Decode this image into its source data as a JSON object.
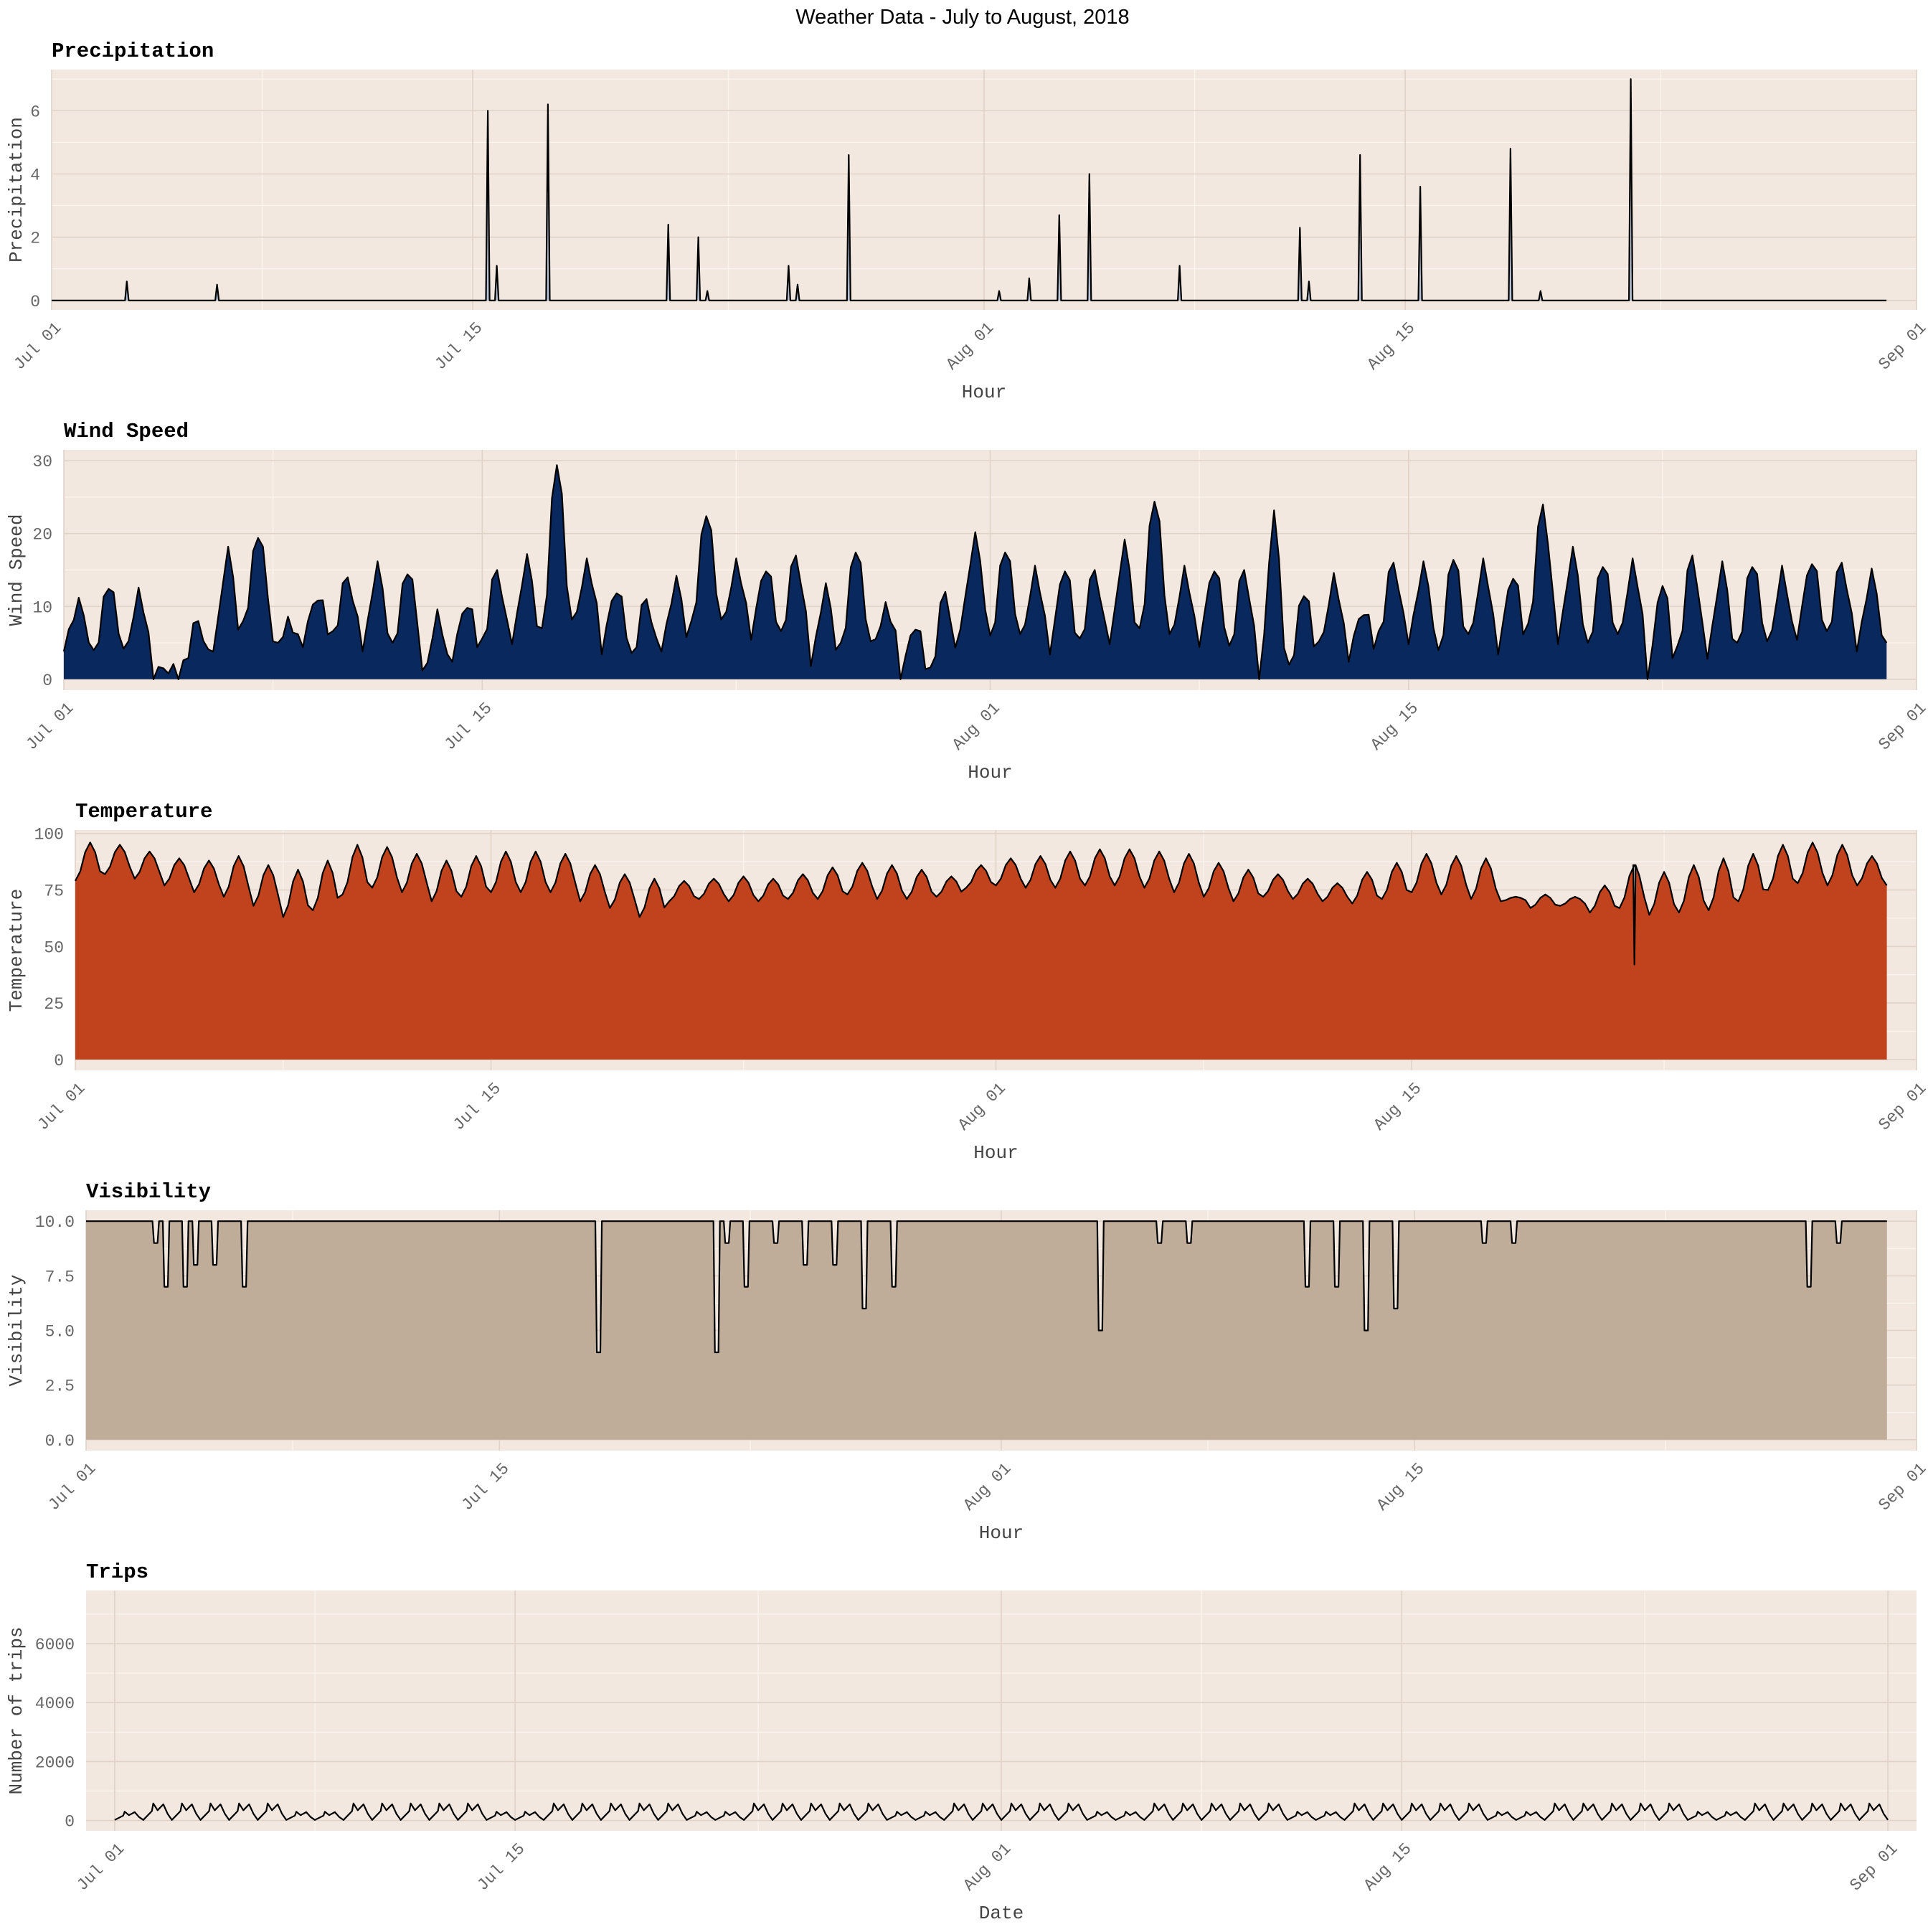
{
  "main_title": "Weather Data -  July to August, 2018",
  "colors": {
    "page_background": "#ffffff",
    "panel_background": "#f3e8df",
    "major_grid": "#e0d2c7",
    "minor_grid": "#fbf5f0",
    "outline": "#000000",
    "precipitation_fill": "#b6c2d8",
    "wind_fill": "#08285e",
    "temperature_fill": "#c0431d",
    "visibility_fill": "#bfad9a"
  },
  "chart_data": [
    {
      "id": "precipitation",
      "type": "area",
      "title": "Precipitation",
      "xlabel": "Hour",
      "ylabel": "Precipitation",
      "x_ticks": [
        "Jul 01",
        "Jul 15",
        "Aug 01",
        "Aug 15",
        "Sep 01"
      ],
      "x_range": [
        "2018-07-01",
        "2018-09-01"
      ],
      "x_data_range": [
        "2018-07-01",
        "2018-08-31"
      ],
      "ylim": [
        -0.3,
        7.3
      ],
      "y_ticks": [
        0,
        2,
        4,
        6
      ],
      "y_tick_labels": [
        "0",
        "2",
        "4",
        "6"
      ],
      "baseline": 0,
      "fill_color": "#b6c2d8",
      "grid": true,
      "spikes": [
        {
          "date": "2018-07-03",
          "value": 0.6
        },
        {
          "date": "2018-07-06",
          "value": 0.5
        },
        {
          "date": "2018-07-15",
          "value": 6.0
        },
        {
          "date": "2018-07-15",
          "value": 1.1
        },
        {
          "date": "2018-07-17",
          "value": 6.2
        },
        {
          "date": "2018-07-21",
          "value": 2.4
        },
        {
          "date": "2018-07-22",
          "value": 2.0
        },
        {
          "date": "2018-07-22",
          "value": 0.3
        },
        {
          "date": "2018-07-25",
          "value": 1.1
        },
        {
          "date": "2018-07-25",
          "value": 0.5
        },
        {
          "date": "2018-07-27",
          "value": 4.6
        },
        {
          "date": "2018-08-01",
          "value": 0.3
        },
        {
          "date": "2018-08-02",
          "value": 0.7
        },
        {
          "date": "2018-08-03",
          "value": 2.7
        },
        {
          "date": "2018-08-04",
          "value": 4.0
        },
        {
          "date": "2018-08-07",
          "value": 1.1
        },
        {
          "date": "2018-08-11",
          "value": 2.3
        },
        {
          "date": "2018-08-11",
          "value": 0.6
        },
        {
          "date": "2018-08-13",
          "value": 4.6
        },
        {
          "date": "2018-08-15",
          "value": 3.6
        },
        {
          "date": "2018-08-18",
          "value": 4.8
        },
        {
          "date": "2018-08-19",
          "value": 0.3
        },
        {
          "date": "2018-08-22",
          "value": 7.0
        }
      ]
    },
    {
      "id": "wind",
      "type": "area",
      "title": "Wind Speed",
      "xlabel": "Hour",
      "ylabel": "Wind Speed",
      "x_ticks": [
        "Jul 01",
        "Jul 15",
        "Aug 01",
        "Aug 15",
        "Sep 01"
      ],
      "x_range": [
        "2018-07-01",
        "2018-09-01"
      ],
      "x_data_range": [
        "2018-07-01",
        "2018-08-31"
      ],
      "ylim": [
        -1.5,
        31.5
      ],
      "y_ticks": [
        0,
        10,
        20,
        30
      ],
      "y_tick_labels": [
        "0",
        "10",
        "20",
        "30"
      ],
      "baseline": 0,
      "fill_color": "#08285e",
      "grid": true,
      "daily_peak": [
        10,
        13,
        12,
        2,
        8,
        17,
        20,
        8,
        12,
        14,
        15,
        15,
        9,
        11,
        15,
        16,
        30,
        16,
        13,
        11,
        13,
        23,
        16,
        16,
        17,
        12,
        18,
        10,
        8,
        12,
        19,
        18,
        15,
        16,
        15,
        18,
        25,
        15,
        16,
        15,
        22,
        12,
        14,
        10,
        16,
        15,
        17,
        16,
        15,
        24,
        17,
        16,
        16,
        14,
        17,
        15,
        16,
        15,
        17,
        16,
        14
      ],
      "daily_trough": [
        5,
        4,
        3,
        0,
        2,
        5,
        8,
        4,
        5,
        6,
        5,
        5,
        0,
        3,
        5,
        6,
        7,
        7,
        4,
        3,
        5,
        8,
        7,
        6,
        6,
        3,
        5,
        4,
        0,
        1,
        8,
        6,
        5,
        4,
        5,
        6,
        7,
        5,
        5,
        4,
        0,
        2,
        4,
        3,
        6,
        6,
        4,
        5,
        4,
        7,
        6,
        5,
        5,
        0,
        4,
        4,
        5,
        4,
        6,
        6,
        5
      ]
    },
    {
      "id": "temperature",
      "type": "area",
      "title": "Temperature",
      "xlabel": "Hour",
      "ylabel": "Temperature",
      "x_ticks": [
        "Jul 01",
        "Jul 15",
        "Aug 01",
        "Aug 15",
        "Sep 01"
      ],
      "x_range": [
        "2018-07-01",
        "2018-09-01"
      ],
      "x_data_range": [
        "2018-07-01",
        "2018-08-31"
      ],
      "ylim": [
        -4.8,
        101.5
      ],
      "y_ticks": [
        0,
        25,
        50,
        75,
        100
      ],
      "y_tick_labels": [
        "0",
        "25",
        "50",
        "75",
        "100"
      ],
      "baseline": 0,
      "fill_color": "#c0431d",
      "grid": true,
      "daily_high": [
        96,
        95,
        92,
        89,
        88,
        90,
        86,
        84,
        88,
        95,
        94,
        91,
        88,
        90,
        92,
        92,
        91,
        86,
        82,
        80,
        79,
        80,
        81,
        80,
        82,
        85,
        87,
        86,
        84,
        81,
        86,
        89,
        90,
        92,
        93,
        93,
        92,
        91,
        87,
        84,
        82,
        80,
        78,
        83,
        87,
        91,
        90,
        89,
        72,
        73,
        72,
        77,
        86,
        83,
        86,
        89,
        91,
        95,
        96,
        95,
        90
      ],
      "daily_low": [
        79,
        82,
        80,
        77,
        74,
        72,
        68,
        63,
        66,
        73,
        76,
        74,
        70,
        72,
        74,
        74,
        74,
        70,
        67,
        63,
        70,
        71,
        70,
        70,
        71,
        71,
        73,
        71,
        71,
        72,
        76,
        77,
        76,
        76,
        77,
        77,
        76,
        74,
        72,
        70,
        72,
        71,
        70,
        69,
        71,
        74,
        73,
        71,
        70,
        67,
        68,
        65,
        67,
        64,
        65,
        66,
        70,
        75,
        78,
        77,
        77
      ],
      "dip": {
        "date": "2018-08-22",
        "value": 42
      }
    },
    {
      "id": "visibility",
      "type": "area",
      "title": "Visibility",
      "xlabel": "Hour",
      "ylabel": "Visibility",
      "x_ticks": [
        "Jul 01",
        "Jul 15",
        "Aug 01",
        "Aug 15",
        "Sep 01"
      ],
      "x_range": [
        "2018-07-01",
        "2018-09-01"
      ],
      "x_data_range": [
        "2018-07-01",
        "2018-08-31"
      ],
      "ylim": [
        -0.5,
        10.5
      ],
      "y_ticks": [
        0,
        2.5,
        5,
        7.5,
        10
      ],
      "y_tick_labels": [
        "0.0",
        "2.5",
        "5.0",
        "7.5",
        "10.0"
      ],
      "baseline": 0,
      "max_value": 10,
      "fill_color": "#bfad9a",
      "grid": true,
      "dips": [
        {
          "date": "2018-07-03",
          "value": 9
        },
        {
          "date": "2018-07-03",
          "value": 7
        },
        {
          "date": "2018-07-04",
          "value": 7
        },
        {
          "date": "2018-07-04",
          "value": 8
        },
        {
          "date": "2018-07-05",
          "value": 8
        },
        {
          "date": "2018-07-06",
          "value": 7
        },
        {
          "date": "2018-07-18",
          "value": 4
        },
        {
          "date": "2018-07-22",
          "value": 4
        },
        {
          "date": "2018-07-22",
          "value": 9
        },
        {
          "date": "2018-07-23",
          "value": 7
        },
        {
          "date": "2018-07-24",
          "value": 9
        },
        {
          "date": "2018-07-25",
          "value": 8
        },
        {
          "date": "2018-07-26",
          "value": 8
        },
        {
          "date": "2018-07-27",
          "value": 6
        },
        {
          "date": "2018-07-28",
          "value": 7
        },
        {
          "date": "2018-08-04",
          "value": 5
        },
        {
          "date": "2018-08-06",
          "value": 9
        },
        {
          "date": "2018-08-07",
          "value": 9
        },
        {
          "date": "2018-08-11",
          "value": 7
        },
        {
          "date": "2018-08-12",
          "value": 7
        },
        {
          "date": "2018-08-13",
          "value": 5
        },
        {
          "date": "2018-08-14",
          "value": 6
        },
        {
          "date": "2018-08-17",
          "value": 9
        },
        {
          "date": "2018-08-18",
          "value": 9
        },
        {
          "date": "2018-08-28",
          "value": 7
        },
        {
          "date": "2018-08-29",
          "value": 9
        }
      ]
    },
    {
      "id": "trips",
      "type": "line",
      "title": "Trips",
      "xlabel": "Date",
      "ylabel": "Number of trips",
      "x_ticks": [
        "Jul 01",
        "Jul 15",
        "Aug 01",
        "Aug 15",
        "Sep 01"
      ],
      "x_range": [
        "2018-06-30",
        "2018-09-02"
      ],
      "x_data_range": [
        "2018-07-01",
        "2018-09-01"
      ],
      "ylim": [
        -350,
        7800
      ],
      "y_ticks": [
        0,
        2000,
        4000,
        6000
      ],
      "y_tick_labels": [
        "0",
        "2000",
        "4000",
        "6000"
      ],
      "grid": true,
      "weekday_peak": 580,
      "weekend_peak": 300
    }
  ]
}
